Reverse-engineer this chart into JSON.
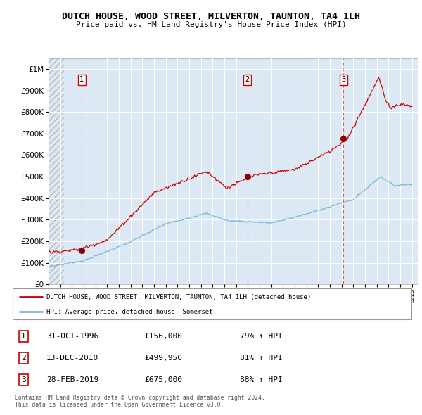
{
  "title": "DUTCH HOUSE, WOOD STREET, MILVERTON, TAUNTON, TA4 1LH",
  "subtitle": "Price paid vs. HM Land Registry's House Price Index (HPI)",
  "hpi_label": "HPI: Average price, detached house, Somerset",
  "property_label": "DUTCH HOUSE, WOOD STREET, MILVERTON, TAUNTON, TA4 1LH (detached house)",
  "sale1_date": "31-OCT-1996",
  "sale1_price": 156000,
  "sale1_hpi": "79% ↑ HPI",
  "sale2_date": "13-DEC-2010",
  "sale2_price": 499950,
  "sale2_hpi": "81% ↑ HPI",
  "sale3_date": "28-FEB-2019",
  "sale3_price": 675000,
  "sale3_hpi": "88% ↑ HPI",
  "sale1_x": 1996.83,
  "sale2_x": 2010.95,
  "sale3_x": 2019.16,
  "xmin": 1994.0,
  "xmax": 2025.5,
  "ymin": 0,
  "ymax": 1050000,
  "background_color": "#dce9f5",
  "red_line_color": "#cc0000",
  "blue_line_color": "#7ab8d9",
  "vline_color_red": "#dd5555",
  "footer": "Contains HM Land Registry data © Crown copyright and database right 2024.\nThis data is licensed under the Open Government Licence v3.0."
}
